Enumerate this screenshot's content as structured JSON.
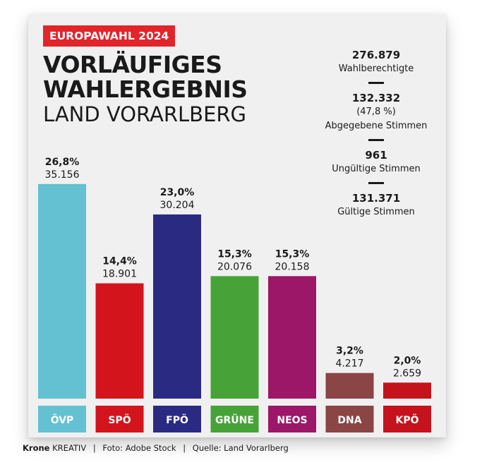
{
  "header": {
    "tag": "EUROPAWAHL 2024",
    "title_line1": "VORLÄUFIGES",
    "title_line2": "WAHLERGEBNIS",
    "subtitle": "LAND VORARLBERG"
  },
  "stats": [
    {
      "value": "276.879",
      "label": "Wahlberechtigte"
    },
    {
      "value": "132.332",
      "percent": "(47,8 %)",
      "label": "Abgegebene Stimmen"
    },
    {
      "value": "961",
      "label": "Ungültige Stimmen"
    },
    {
      "value": "131.371",
      "label": "Gültige Stimmen"
    }
  ],
  "footer": {
    "brand": "Krone",
    "brand_suffix": "KREATIV",
    "photo": "Foto: Adobe Stock",
    "source": "Quelle: Land Vorarlberg"
  },
  "chart_data": {
    "type": "bar",
    "title": "",
    "xlabel": "",
    "ylabel": "",
    "ylim": [
      0,
      30
    ],
    "grid": false,
    "categories": [
      "ÖVP",
      "SPÖ",
      "FPÖ",
      "GRÜNE",
      "NEOS",
      "DNA",
      "KPÖ"
    ],
    "values": [
      26.8,
      14.4,
      23.0,
      15.3,
      15.3,
      3.2,
      2.0
    ],
    "percent_labels": [
      "26,8%",
      "14,4%",
      "23,0%",
      "15,3%",
      "15,3%",
      "3,2%",
      "2,0%"
    ],
    "vote_labels": [
      "35.156",
      "18.901",
      "30.204",
      "20.076",
      "20.158",
      "4.217",
      "2.659"
    ],
    "colors": [
      "#63c1d1",
      "#d3141c",
      "#2a2a83",
      "#47a338",
      "#9c1767",
      "#8b4544",
      "#c4131d"
    ]
  }
}
